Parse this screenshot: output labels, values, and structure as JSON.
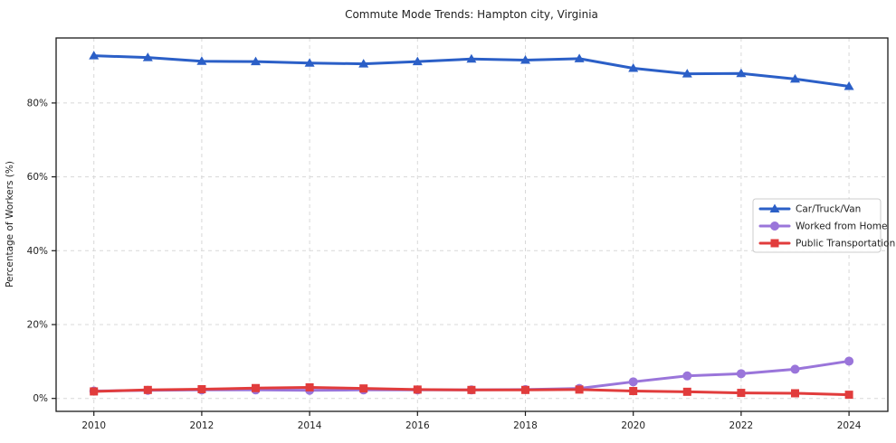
{
  "chart_data": {
    "type": "line",
    "title": "Commute Mode Trends: Hampton city, Virginia",
    "xlabel": "",
    "ylabel": "Percentage of Workers (%)",
    "x": [
      2010,
      2011,
      2012,
      2013,
      2014,
      2015,
      2016,
      2017,
      2018,
      2019,
      2020,
      2021,
      2022,
      2023,
      2024
    ],
    "x_tick_labels": [
      "2010",
      "2012",
      "2014",
      "2016",
      "2018",
      "2020",
      "2022",
      "2024"
    ],
    "x_tick_values": [
      2010,
      2012,
      2014,
      2016,
      2018,
      2020,
      2022,
      2024
    ],
    "y_tick_labels": [
      "0%",
      "20%",
      "40%",
      "60%",
      "80%"
    ],
    "y_tick_values": [
      0,
      20,
      40,
      60,
      80
    ],
    "xlim": [
      2009.3,
      2024.72
    ],
    "ylim": [
      -3.5,
      97.6
    ],
    "grid": true,
    "grid_style": "dashed",
    "legend_position": "center-right",
    "series": [
      {
        "name": "Car/Truck/Van",
        "color": "#2b5fc7",
        "marker": "triangle",
        "values": [
          92.8,
          92.3,
          91.3,
          91.2,
          90.8,
          90.6,
          91.2,
          91.9,
          91.6,
          92.0,
          89.4,
          87.9,
          88.0,
          86.5,
          84.5
        ]
      },
      {
        "name": "Worked from Home",
        "color": "#9a75da",
        "marker": "circle",
        "values": [
          2.0,
          2.2,
          2.3,
          2.3,
          2.2,
          2.3,
          2.3,
          2.3,
          2.4,
          2.7,
          4.5,
          6.1,
          6.7,
          7.9,
          10.1
        ]
      },
      {
        "name": "Public Transportation",
        "color": "#e13c3c",
        "marker": "square",
        "values": [
          1.9,
          2.3,
          2.5,
          2.8,
          3.0,
          2.7,
          2.4,
          2.3,
          2.3,
          2.4,
          2.0,
          1.8,
          1.5,
          1.4,
          1.0
        ]
      }
    ],
    "colors": {
      "grid": "#d8d8d8",
      "frame": "#1a1a1a",
      "background": "#ffffff",
      "legend_border": "#cccccc"
    }
  }
}
